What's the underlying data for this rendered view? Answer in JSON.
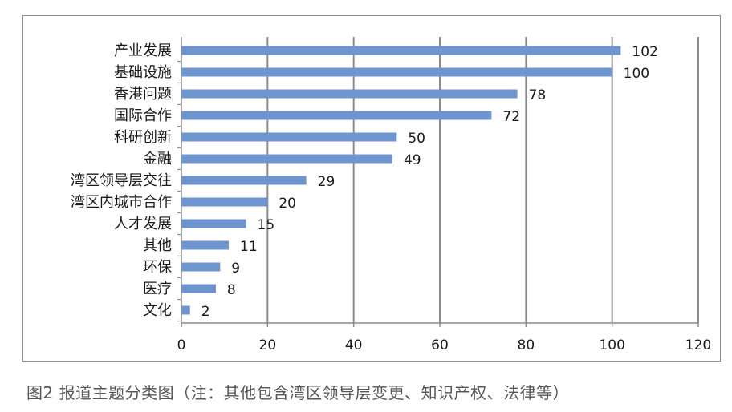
{
  "caption": "图2 报道主题分类图（注：其他包含湾区领导层变更、知识产权、法律等）",
  "colors": {
    "bar": "#6f95cf",
    "grid": "#8c8c8c",
    "axis": "#8c8c8c",
    "text": "#1a1a1a"
  },
  "chart_data": {
    "type": "bar",
    "orientation": "horizontal",
    "categories": [
      "产业发展",
      "基础设施",
      "香港问题",
      "国际合作",
      "科研创新",
      "金融",
      "湾区领导层交往",
      "湾区内城市合作",
      "人才发展",
      "其他",
      "环保",
      "医疗",
      "文化"
    ],
    "values": [
      102,
      100,
      78,
      72,
      50,
      49,
      29,
      20,
      15,
      11,
      9,
      8,
      2
    ],
    "xlim": [
      0,
      120
    ],
    "xticks": [
      0,
      20,
      40,
      60,
      80,
      100,
      120
    ],
    "grid": "vertical",
    "legend": "none",
    "title": "",
    "xlabel": "",
    "ylabel": ""
  }
}
